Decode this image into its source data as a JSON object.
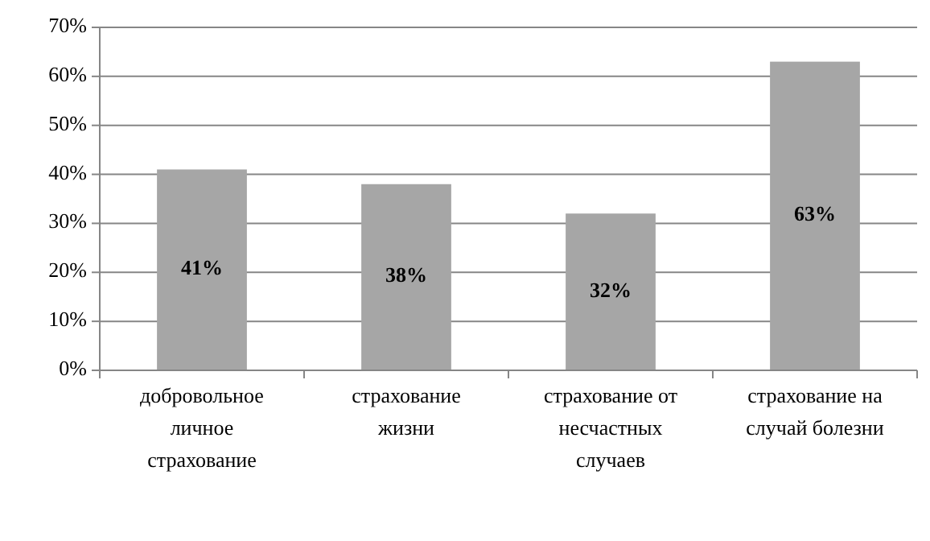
{
  "chart_data": {
    "type": "bar",
    "categories": [
      "добровольное личное страхование",
      "страхование жизни",
      "страхование от несчастных случаев",
      "страхование на случай болезни"
    ],
    "values": [
      41,
      38,
      32,
      63
    ],
    "value_labels": [
      "41%",
      "38%",
      "32%",
      "63%"
    ],
    "color": "#a6a6a6",
    "ylim": [
      0,
      70
    ],
    "yticks": [
      {
        "value": 0,
        "label": "0%"
      },
      {
        "value": 10,
        "label": "10%"
      },
      {
        "value": 20,
        "label": "20%"
      },
      {
        "value": 30,
        "label": "30%"
      },
      {
        "value": 40,
        "label": "40%"
      },
      {
        "value": 50,
        "label": "50%"
      },
      {
        "value": 60,
        "label": "60%"
      },
      {
        "value": 70,
        "label": "70%"
      }
    ],
    "grid": true
  }
}
